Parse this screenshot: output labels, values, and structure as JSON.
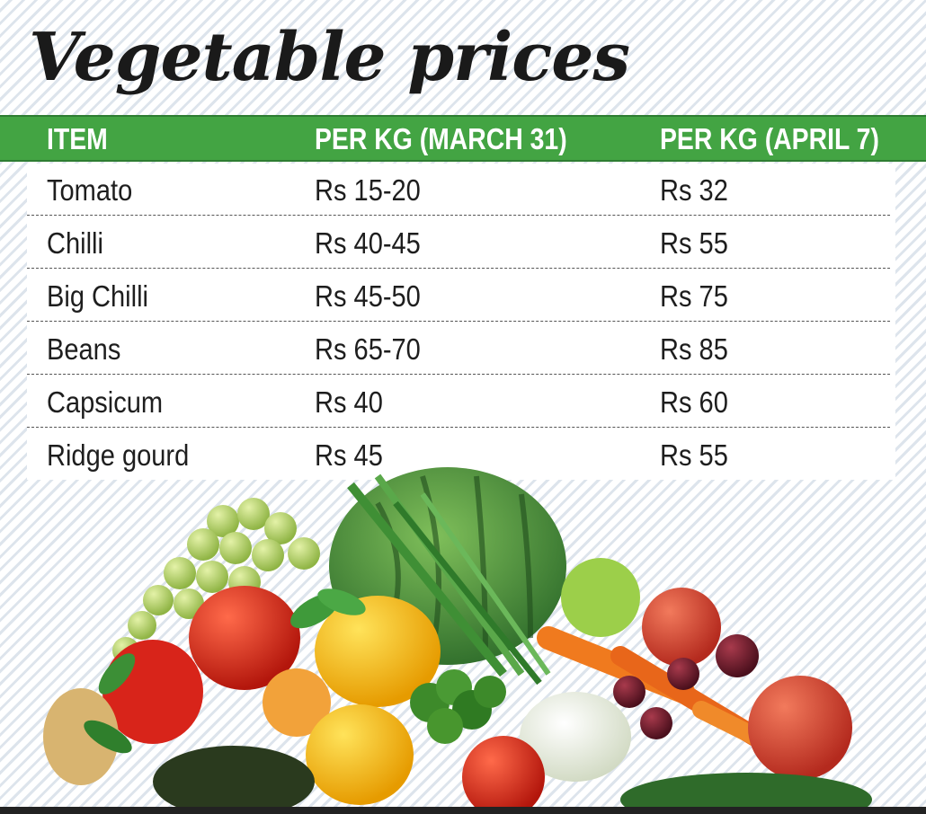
{
  "title": "Vegetable prices",
  "table": {
    "headers": [
      "ITEM",
      "PER KG (MARCH 31)",
      "PER KG (APRIL 7)"
    ],
    "rows": [
      [
        "Tomato",
        "Rs 15-20",
        "Rs 32"
      ],
      [
        "Chilli",
        "Rs 40-45",
        "Rs 55"
      ],
      [
        "Big Chilli",
        "Rs 45-50",
        "Rs 75"
      ],
      [
        "Beans",
        "Rs 65-70",
        "Rs 85"
      ],
      [
        "Capsicum",
        "Rs 40",
        "Rs 60"
      ],
      [
        "Ridge gourd",
        "Rs 45",
        "Rs 55"
      ]
    ]
  },
  "colors": {
    "header_green": "#43a443",
    "text": "#1e1e1e",
    "stripe": "#dde4ec"
  },
  "illustration": "vegetable-pile-photo"
}
